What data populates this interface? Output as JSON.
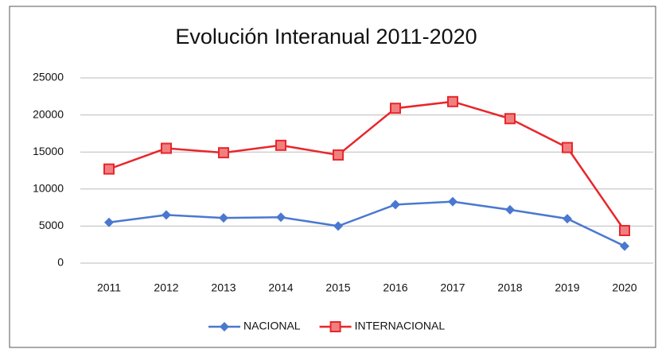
{
  "chart_data": {
    "type": "line",
    "title": "Evolución Interanual 2011-2020",
    "categories": [
      "2011",
      "2012",
      "2013",
      "2014",
      "2015",
      "2016",
      "2017",
      "2018",
      "2019",
      "2020"
    ],
    "series": [
      {
        "name": "NACIONAL",
        "color": "#4a78d0",
        "values": [
          5500,
          6500,
          6100,
          6200,
          5000,
          7900,
          8300,
          7200,
          6000,
          2300
        ]
      },
      {
        "name": "INTERNACIONAL",
        "color": "#e8262b",
        "values": [
          12700,
          15500,
          14900,
          15900,
          14600,
          20900,
          21800,
          19500,
          15600,
          4400
        ]
      }
    ],
    "ylim": [
      0,
      25000
    ],
    "yticks": [
      0,
      5000,
      10000,
      15000,
      20000,
      25000
    ],
    "grid": true,
    "legend": "bottom"
  }
}
